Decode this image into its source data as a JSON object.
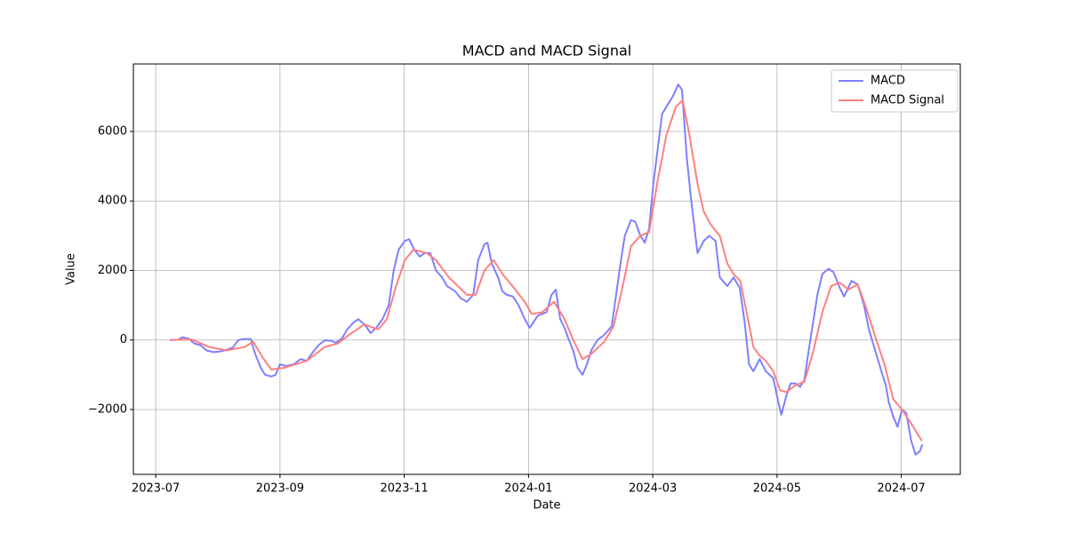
{
  "chart_data": {
    "type": "line",
    "title": "MACD and MACD Signal",
    "x_label": "Date",
    "y_label": "Value",
    "xlim": [
      -0.36,
      12.95
    ],
    "xticks": [
      {
        "value": 0,
        "label": "2023-07"
      },
      {
        "value": 2,
        "label": "2023-09"
      },
      {
        "value": 4,
        "label": "2023-11"
      },
      {
        "value": 6,
        "label": "2024-01"
      },
      {
        "value": 8,
        "label": "2024-03"
      },
      {
        "value": 10,
        "label": "2024-05"
      },
      {
        "value": 12,
        "label": "2024-07"
      }
    ],
    "ylim": [
      -3866,
      7942
    ],
    "yticks": [
      {
        "value": -2000,
        "label": "−2000"
      },
      0,
      2000,
      4000,
      6000
    ],
    "grid": true,
    "legend": "upper right",
    "series": [
      {
        "name": "MACD",
        "color": "#7f7fff",
        "x": [
          0.23,
          0.36,
          0.43,
          0.53,
          0.62,
          0.72,
          0.82,
          0.93,
          1.04,
          1.14,
          1.24,
          1.33,
          1.43,
          1.53,
          1.6,
          1.69,
          1.76,
          1.86,
          1.93,
          2.0,
          2.1,
          2.22,
          2.33,
          2.43,
          2.53,
          2.62,
          2.72,
          2.82,
          2.9,
          3.0,
          3.08,
          3.18,
          3.26,
          3.36,
          3.46,
          3.55,
          3.65,
          3.75,
          3.83,
          3.91,
          4.01,
          4.08,
          4.16,
          4.25,
          4.33,
          4.42,
          4.51,
          4.61,
          4.69,
          4.82,
          4.91,
          5.01,
          5.11,
          5.19,
          5.29,
          5.34,
          5.41,
          5.51,
          5.58,
          5.65,
          5.75,
          5.84,
          5.94,
          6.02,
          6.15,
          6.29,
          6.37,
          6.44,
          6.51,
          6.58,
          6.65,
          6.72,
          6.79,
          6.87,
          6.94,
          7.01,
          7.11,
          7.22,
          7.34,
          7.41,
          7.48,
          7.55,
          7.65,
          7.72,
          7.8,
          7.87,
          7.94,
          8.01,
          8.08,
          8.15,
          8.25,
          8.32,
          8.41,
          8.47,
          8.55,
          8.62,
          8.72,
          8.82,
          8.91,
          9.01,
          9.08,
          9.2,
          9.3,
          9.4,
          9.48,
          9.55,
          9.62,
          9.72,
          9.82,
          9.94,
          10.01,
          10.07,
          10.15,
          10.22,
          10.3,
          10.37,
          10.44,
          10.51,
          10.58,
          10.65,
          10.73,
          10.83,
          10.91,
          11.01,
          11.08,
          11.2,
          11.3,
          11.4,
          11.48,
          11.58,
          11.68,
          11.75,
          11.8,
          11.87,
          11.94,
          12.01,
          12.08,
          12.16,
          12.23,
          12.3,
          12.34
        ],
        "values": [
          0,
          10,
          80,
          40,
          -100,
          -150,
          -300,
          -350,
          -330,
          -280,
          -220,
          0,
          30,
          30,
          -400,
          -800,
          -1000,
          -1050,
          -1000,
          -700,
          -750,
          -700,
          -550,
          -600,
          -350,
          -150,
          -10,
          -20,
          -80,
          50,
          300,
          500,
          600,
          450,
          200,
          350,
          600,
          1000,
          2000,
          2600,
          2850,
          2900,
          2600,
          2400,
          2500,
          2500,
          2000,
          1800,
          1550,
          1400,
          1200,
          1100,
          1300,
          2300,
          2750,
          2800,
          2200,
          1800,
          1400,
          1300,
          1250,
          1000,
          600,
          350,
          700,
          800,
          1300,
          1450,
          600,
          350,
          0,
          -300,
          -800,
          -1000,
          -700,
          -300,
          0,
          150,
          400,
          1300,
          2200,
          3000,
          3450,
          3400,
          3000,
          2800,
          3200,
          4500,
          5500,
          6500,
          6800,
          7000,
          7350,
          7200,
          5200,
          4000,
          2500,
          2850,
          3000,
          2850,
          1800,
          1550,
          1800,
          1500,
          500,
          -700,
          -900,
          -550,
          -900,
          -1100,
          -1700,
          -2150,
          -1600,
          -1250,
          -1250,
          -1350,
          -1150,
          -300,
          500,
          1300,
          1900,
          2050,
          1950,
          1500,
          1250,
          1700,
          1600,
          1000,
          300,
          -300,
          -900,
          -1300,
          -1800,
          -2200,
          -2500,
          -2000,
          -2100,
          -2900,
          -3300,
          -3200,
          -3000
        ]
      },
      {
        "name": "MACD Signal",
        "color": "#ff7f7f",
        "x": [
          0.23,
          0.57,
          0.86,
          1.14,
          1.43,
          1.57,
          1.72,
          1.86,
          2.07,
          2.43,
          2.72,
          2.93,
          3.15,
          3.36,
          3.58,
          3.72,
          3.86,
          4.01,
          4.15,
          4.36,
          4.51,
          4.72,
          5.01,
          5.15,
          5.29,
          5.44,
          5.58,
          5.72,
          5.94,
          6.05,
          6.22,
          6.41,
          6.58,
          6.72,
          6.87,
          7.01,
          7.22,
          7.37,
          7.51,
          7.65,
          7.8,
          7.94,
          8.08,
          8.22,
          8.37,
          8.48,
          8.58,
          8.72,
          8.82,
          8.94,
          9.08,
          9.2,
          9.3,
          9.41,
          9.51,
          9.62,
          9.72,
          9.82,
          9.94,
          10.05,
          10.15,
          10.3,
          10.44,
          10.58,
          10.73,
          10.87,
          11.01,
          11.15,
          11.3,
          11.44,
          11.58,
          11.73,
          11.87,
          12.01,
          12.16,
          12.33
        ],
        "values": [
          0,
          20,
          -200,
          -300,
          -200,
          -50,
          -500,
          -850,
          -800,
          -600,
          -200,
          -100,
          200,
          450,
          300,
          600,
          1500,
          2300,
          2600,
          2500,
          2300,
          1800,
          1300,
          1300,
          2000,
          2300,
          1900,
          1600,
          1100,
          750,
          800,
          1100,
          600,
          0,
          -550,
          -400,
          -50,
          400,
          1500,
          2700,
          3000,
          3100,
          4600,
          5900,
          6700,
          6900,
          6000,
          4500,
          3700,
          3300,
          3000,
          2200,
          1900,
          1700,
          800,
          -200,
          -450,
          -600,
          -900,
          -1450,
          -1500,
          -1300,
          -1200,
          -350,
          800,
          1550,
          1650,
          1450,
          1600,
          900,
          100,
          -700,
          -1700,
          -2000,
          -2400,
          -2900
        ]
      }
    ]
  }
}
